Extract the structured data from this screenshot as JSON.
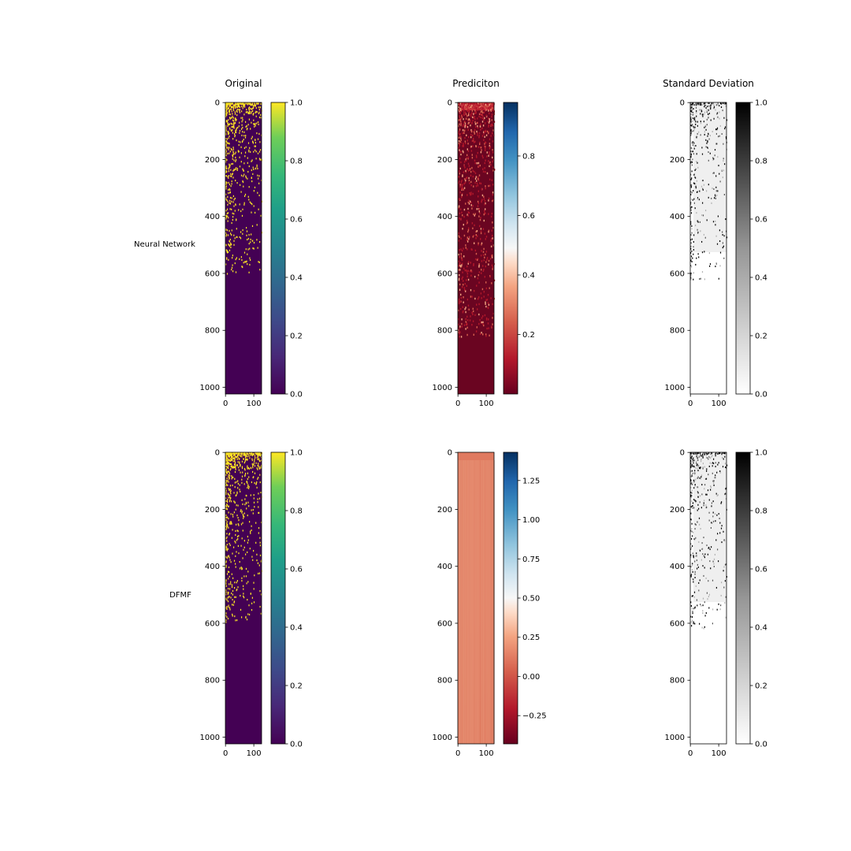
{
  "chart_data": {
    "type": "heatmap",
    "column_titles": [
      "Original",
      "Prediciton",
      "Standard Deviation"
    ],
    "row_labels": [
      "Neural Network",
      "DFMF"
    ],
    "image_shape": {
      "rows": 1024,
      "cols": 128
    },
    "x_ticks": [
      0,
      100
    ],
    "y_ticks": [
      0,
      200,
      400,
      600,
      800,
      1000
    ],
    "panels": [
      {
        "row": 0,
        "col": 0,
        "colormap": "viridis",
        "vmin": 0.0,
        "vmax": 1.0,
        "colorbar_ticks": [
          0.0,
          0.2,
          0.4,
          0.6,
          0.8,
          1.0
        ],
        "colorbar_tick_labels": [
          "0.0",
          "0.2",
          "0.4",
          "0.6",
          "0.8",
          "1.0"
        ]
      },
      {
        "row": 0,
        "col": 1,
        "colormap": "RdBu",
        "vmin": 0.0,
        "vmax": 0.98,
        "colorbar_ticks": [
          0.2,
          0.4,
          0.6,
          0.8
        ],
        "colorbar_tick_labels": [
          "0.2",
          "0.4",
          "0.6",
          "0.8"
        ]
      },
      {
        "row": 0,
        "col": 2,
        "colormap": "Greys",
        "vmin": 0.0,
        "vmax": 1.0,
        "colorbar_ticks": [
          0.0,
          0.2,
          0.4,
          0.6,
          0.8,
          1.0
        ],
        "colorbar_tick_labels": [
          "0.0",
          "0.2",
          "0.4",
          "0.6",
          "0.8",
          "1.0"
        ]
      },
      {
        "row": 1,
        "col": 0,
        "colormap": "viridis",
        "vmin": 0.0,
        "vmax": 1.0,
        "colorbar_ticks": [
          0.0,
          0.2,
          0.4,
          0.6,
          0.8,
          1.0
        ],
        "colorbar_tick_labels": [
          "0.0",
          "0.2",
          "0.4",
          "0.6",
          "0.8",
          "1.0"
        ]
      },
      {
        "row": 1,
        "col": 1,
        "colormap": "RdBu",
        "vmin": -0.43,
        "vmax": 1.43,
        "colorbar_ticks": [
          -0.25,
          0.0,
          0.25,
          0.5,
          0.75,
          1.0,
          1.25
        ],
        "colorbar_tick_labels": [
          "−0.25",
          "0.00",
          "0.25",
          "0.50",
          "0.75",
          "1.00",
          "1.25"
        ]
      },
      {
        "row": 1,
        "col": 2,
        "colormap": "Greys",
        "vmin": 0.0,
        "vmax": 1.0,
        "colorbar_ticks": [
          0.0,
          0.2,
          0.4,
          0.6,
          0.8,
          1.0
        ],
        "colorbar_tick_labels": [
          "0.0",
          "0.2",
          "0.4",
          "0.6",
          "0.8",
          "1.0"
        ]
      }
    ],
    "colors": {
      "viridis_low": "#440154",
      "viridis_high": "#fde725",
      "rdbu_low": "#67001f",
      "rdbu_mid": "#f7f7f7",
      "rdbu_high": "#053061",
      "greys_low": "#ffffff",
      "greys_high": "#000000"
    }
  }
}
